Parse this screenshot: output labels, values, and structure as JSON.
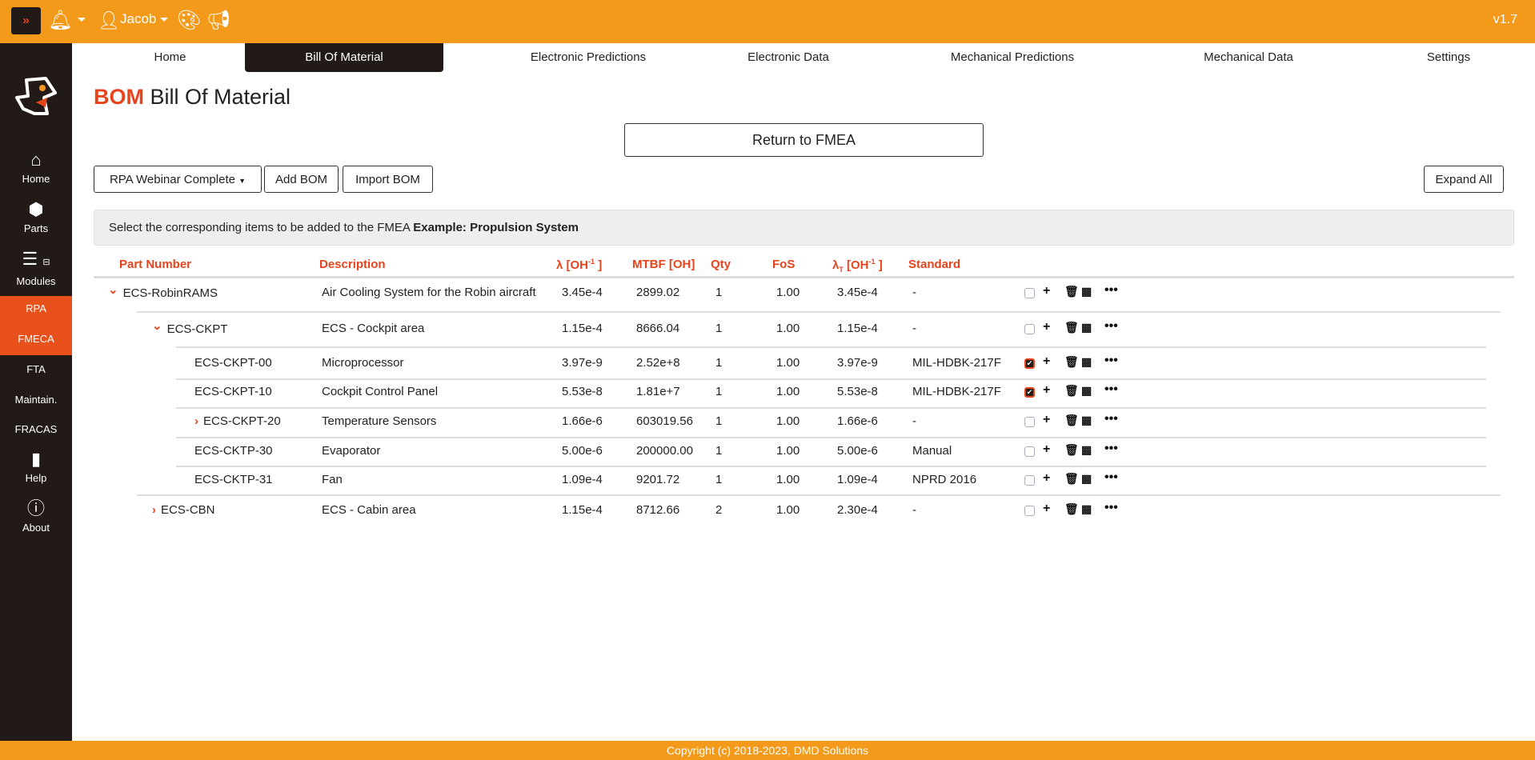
{
  "topbar": {
    "user": "Jacob",
    "version": "v1.7",
    "toggle_icon": "double-chevron-right-icon"
  },
  "sidebar": {
    "items": [
      {
        "label": "Home",
        "icon": "home-icon"
      },
      {
        "label": "Parts",
        "icon": "cubes-icon"
      },
      {
        "label": "Modules",
        "icon": "bars-icon"
      },
      {
        "label": "RPA",
        "active": true
      },
      {
        "label": "FMECA",
        "active": true
      },
      {
        "label": "FTA"
      },
      {
        "label": "Maintain."
      },
      {
        "label": "FRACAS"
      },
      {
        "label": "Help",
        "icon": "book-icon"
      },
      {
        "label": "About",
        "icon": "info-icon"
      }
    ]
  },
  "tabs": [
    "Home",
    "Bill Of Material",
    "Electronic Predictions",
    "Electronic Data",
    "Mechanical Predictions",
    "Mechanical Data",
    "Settings"
  ],
  "active_tab": "Bill Of Material",
  "page": {
    "title_prefix": "BOM",
    "title": "Bill Of Material",
    "return_button": "Return to FMEA",
    "bom_select": "RPA Webinar Complete",
    "add_bom": "Add BOM",
    "import_bom": "Import BOM",
    "expand_all": "Expand All",
    "info_text": "Select the corresponding items to be added to the FMEA",
    "info_bold": "Example: Propulsion System"
  },
  "table": {
    "headers": {
      "part": "Part Number",
      "desc": "Description",
      "lambda": "λ [OH",
      "lambda_sup": "-1",
      "mtbf": "MTBF [OH]",
      "qty": "Qty",
      "fos": "FoS",
      "lambdat": "λ",
      "lambdat_sub": "T",
      "lambdat_rest": "[OH",
      "standard": "Standard"
    },
    "rows": [
      {
        "part": "ECS-RobinRAMS",
        "desc": "Air Cooling System for the Robin aircraft",
        "lambda": "3.45e-4",
        "mtbf": "2899.02",
        "qty": "1",
        "fos": "1.00",
        "lambdat": "3.45e-4",
        "standard": "-",
        "level": 0,
        "expander": "down",
        "checked": false
      },
      {
        "part": "ECS-CKPT",
        "desc": "ECS - Cockpit area",
        "lambda": "1.15e-4",
        "mtbf": "8666.04",
        "qty": "1",
        "fos": "1.00",
        "lambdat": "1.15e-4",
        "standard": "-",
        "level": 1,
        "expander": "down",
        "checked": false
      },
      {
        "part": "ECS-CKPT-00",
        "desc": "Microprocessor",
        "lambda": "3.97e-9",
        "mtbf": "2.52e+8",
        "qty": "1",
        "fos": "1.00",
        "lambdat": "3.97e-9",
        "standard": "MIL-HDBK-217F",
        "level": 2,
        "expander": "",
        "checked": true
      },
      {
        "part": "ECS-CKPT-10",
        "desc": "Cockpit Control Panel",
        "lambda": "5.53e-8",
        "mtbf": "1.81e+7",
        "qty": "1",
        "fos": "1.00",
        "lambdat": "5.53e-8",
        "standard": "MIL-HDBK-217F",
        "level": 2,
        "expander": "",
        "checked": true
      },
      {
        "part": "ECS-CKPT-20",
        "desc": "Temperature Sensors",
        "lambda": "1.66e-6",
        "mtbf": "603019.56",
        "qty": "1",
        "fos": "1.00",
        "lambdat": "1.66e-6",
        "standard": "-",
        "level": 2,
        "expander": "right",
        "checked": false
      },
      {
        "part": "ECS-CKTP-30",
        "desc": "Evaporator",
        "lambda": "5.00e-6",
        "mtbf": "200000.00",
        "qty": "1",
        "fos": "1.00",
        "lambdat": "5.00e-6",
        "standard": "Manual",
        "level": 2,
        "expander": "",
        "checked": false
      },
      {
        "part": "ECS-CKTP-31",
        "desc": "Fan",
        "lambda": "1.09e-4",
        "mtbf": "9201.72",
        "qty": "1",
        "fos": "1.00",
        "lambdat": "1.09e-4",
        "standard": "NPRD 2016",
        "level": 2,
        "expander": "",
        "checked": false
      },
      {
        "part": "ECS-CBN",
        "desc": "ECS - Cabin area",
        "lambda": "1.15e-4",
        "mtbf": "8712.66",
        "qty": "2",
        "fos": "1.00",
        "lambdat": "2.30e-4",
        "standard": "-",
        "level": 1,
        "expander": "right",
        "checked": false
      }
    ]
  },
  "footer": "Copyright (c) 2018-2023, DMD Solutions",
  "colors": {
    "orange": "#f49a1a",
    "accent": "#e8441c",
    "dark": "#211a16"
  }
}
